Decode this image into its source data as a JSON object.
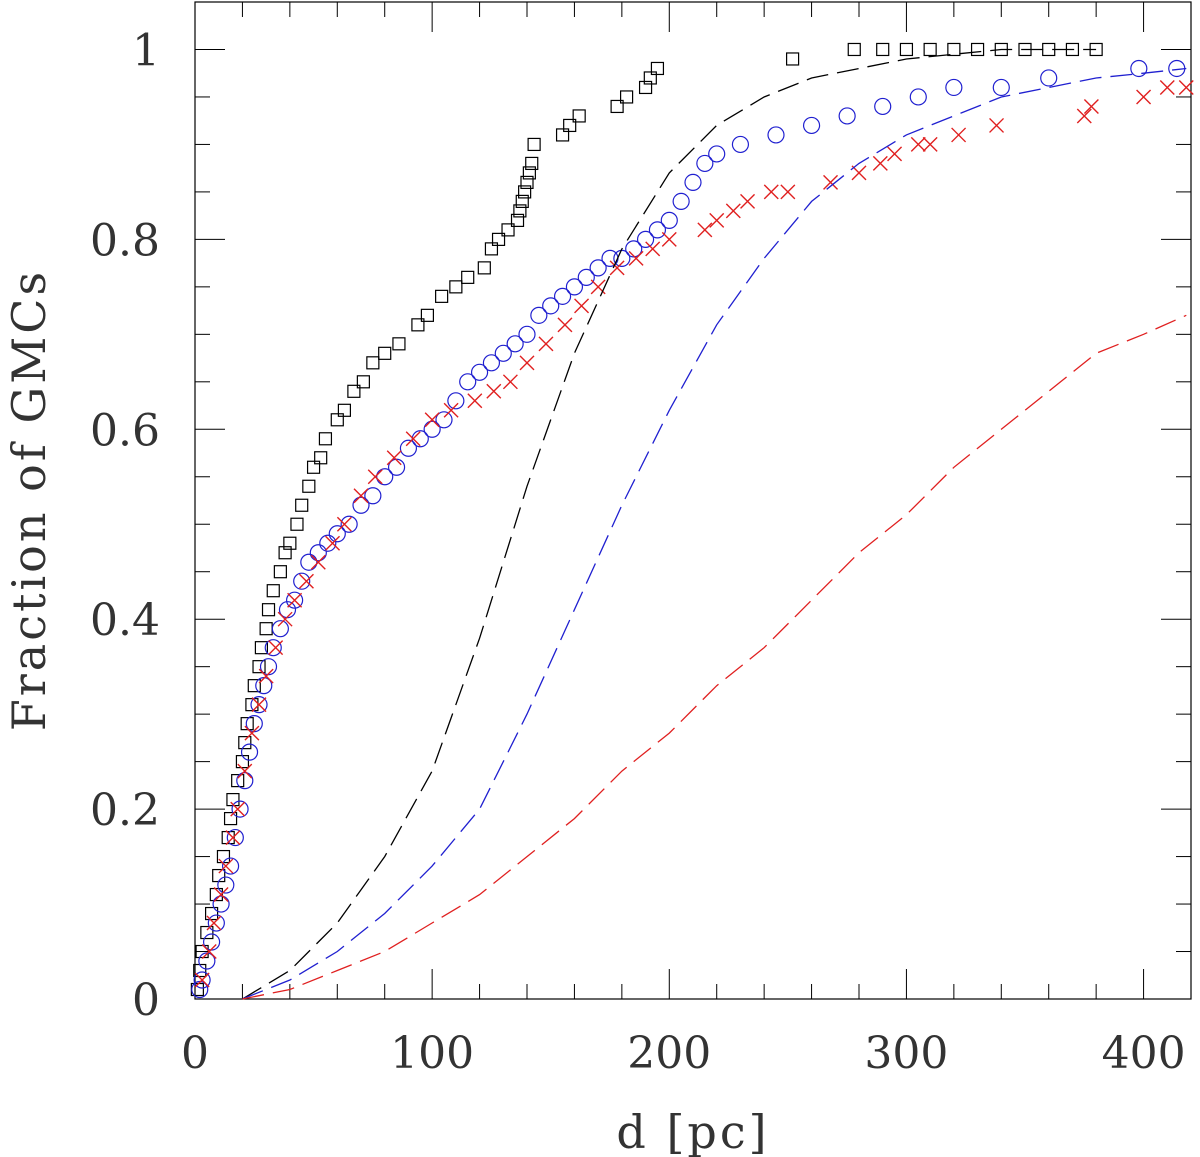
{
  "chart_data": {
    "type": "scatter",
    "title": "",
    "xlabel": "d [pc]",
    "ylabel": "Fraction of GMCs",
    "xlim": [
      0,
      420
    ],
    "ylim": [
      0,
      1.05
    ],
    "x_ticks": [
      0,
      100,
      200,
      300,
      400
    ],
    "x_tick_labels": [
      "0",
      "100",
      "200",
      "300",
      "400"
    ],
    "y_ticks": [
      0,
      0.2,
      0.4,
      0.6,
      0.8,
      1
    ],
    "y_tick_labels": [
      "0",
      "0.2",
      "0.4",
      "0.6",
      "0.8",
      "1"
    ],
    "grid": false,
    "series": [
      {
        "name": "black squares",
        "marker": "square",
        "color": "#000000",
        "points": [
          [
            1,
            0.01
          ],
          [
            2,
            0.03
          ],
          [
            3,
            0.05
          ],
          [
            5,
            0.07
          ],
          [
            7,
            0.09
          ],
          [
            9,
            0.11
          ],
          [
            10,
            0.13
          ],
          [
            12,
            0.15
          ],
          [
            14,
            0.17
          ],
          [
            15,
            0.19
          ],
          [
            16,
            0.21
          ],
          [
            18,
            0.23
          ],
          [
            20,
            0.25
          ],
          [
            21,
            0.27
          ],
          [
            22,
            0.29
          ],
          [
            24,
            0.31
          ],
          [
            25,
            0.33
          ],
          [
            27,
            0.35
          ],
          [
            28,
            0.37
          ],
          [
            30,
            0.39
          ],
          [
            31,
            0.41
          ],
          [
            33,
            0.43
          ],
          [
            36,
            0.45
          ],
          [
            38,
            0.47
          ],
          [
            40,
            0.48
          ],
          [
            43,
            0.5
          ],
          [
            45,
            0.52
          ],
          [
            48,
            0.54
          ],
          [
            50,
            0.56
          ],
          [
            53,
            0.57
          ],
          [
            55,
            0.59
          ],
          [
            60,
            0.61
          ],
          [
            63,
            0.62
          ],
          [
            67,
            0.64
          ],
          [
            71,
            0.65
          ],
          [
            75,
            0.67
          ],
          [
            80,
            0.68
          ],
          [
            86,
            0.69
          ],
          [
            94,
            0.71
          ],
          [
            98,
            0.72
          ],
          [
            104,
            0.74
          ],
          [
            110,
            0.75
          ],
          [
            115,
            0.76
          ],
          [
            122,
            0.77
          ],
          [
            125,
            0.79
          ],
          [
            128,
            0.8
          ],
          [
            132,
            0.81
          ],
          [
            136,
            0.82
          ],
          [
            137,
            0.83
          ],
          [
            138,
            0.84
          ],
          [
            139,
            0.85
          ],
          [
            140,
            0.86
          ],
          [
            141,
            0.87
          ],
          [
            142,
            0.88
          ],
          [
            143,
            0.9
          ],
          [
            155,
            0.91
          ],
          [
            158,
            0.92
          ],
          [
            162,
            0.93
          ],
          [
            178,
            0.94
          ],
          [
            182,
            0.95
          ],
          [
            190,
            0.96
          ],
          [
            192,
            0.97
          ],
          [
            195,
            0.98
          ],
          [
            252,
            0.99
          ],
          [
            278,
            1.0
          ],
          [
            290,
            1.0
          ],
          [
            300,
            1.0
          ],
          [
            310,
            1.0
          ],
          [
            320,
            1.0
          ],
          [
            330,
            1.0
          ],
          [
            340,
            1.0
          ],
          [
            350,
            1.0
          ],
          [
            360,
            1.0
          ],
          [
            370,
            1.0
          ],
          [
            380,
            1.0
          ]
        ]
      },
      {
        "name": "blue circles",
        "marker": "circle",
        "color": "#2020d0",
        "points": [
          [
            2,
            0.01
          ],
          [
            3,
            0.02
          ],
          [
            5,
            0.04
          ],
          [
            7,
            0.06
          ],
          [
            9,
            0.08
          ],
          [
            11,
            0.1
          ],
          [
            13,
            0.12
          ],
          [
            15,
            0.14
          ],
          [
            17,
            0.17
          ],
          [
            19,
            0.2
          ],
          [
            21,
            0.23
          ],
          [
            23,
            0.26
          ],
          [
            25,
            0.29
          ],
          [
            27,
            0.31
          ],
          [
            29,
            0.33
          ],
          [
            31,
            0.35
          ],
          [
            33,
            0.37
          ],
          [
            36,
            0.39
          ],
          [
            39,
            0.41
          ],
          [
            42,
            0.42
          ],
          [
            45,
            0.44
          ],
          [
            48,
            0.46
          ],
          [
            52,
            0.47
          ],
          [
            56,
            0.48
          ],
          [
            60,
            0.49
          ],
          [
            65,
            0.5
          ],
          [
            70,
            0.52
          ],
          [
            75,
            0.53
          ],
          [
            80,
            0.55
          ],
          [
            85,
            0.56
          ],
          [
            90,
            0.58
          ],
          [
            95,
            0.59
          ],
          [
            100,
            0.6
          ],
          [
            105,
            0.61
          ],
          [
            110,
            0.63
          ],
          [
            115,
            0.65
          ],
          [
            120,
            0.66
          ],
          [
            125,
            0.67
          ],
          [
            130,
            0.68
          ],
          [
            135,
            0.69
          ],
          [
            140,
            0.7
          ],
          [
            145,
            0.72
          ],
          [
            150,
            0.73
          ],
          [
            155,
            0.74
          ],
          [
            160,
            0.75
          ],
          [
            165,
            0.76
          ],
          [
            170,
            0.77
          ],
          [
            175,
            0.78
          ],
          [
            180,
            0.78
          ],
          [
            185,
            0.79
          ],
          [
            190,
            0.8
          ],
          [
            195,
            0.81
          ],
          [
            200,
            0.82
          ],
          [
            205,
            0.84
          ],
          [
            210,
            0.86
          ],
          [
            215,
            0.88
          ],
          [
            220,
            0.89
          ],
          [
            230,
            0.9
          ],
          [
            245,
            0.91
          ],
          [
            260,
            0.92
          ],
          [
            275,
            0.93
          ],
          [
            290,
            0.94
          ],
          [
            305,
            0.95
          ],
          [
            320,
            0.96
          ],
          [
            340,
            0.96
          ],
          [
            360,
            0.97
          ],
          [
            398,
            0.98
          ],
          [
            414,
            0.98
          ]
        ]
      },
      {
        "name": "red crosses",
        "marker": "cross",
        "color": "#e02020",
        "points": [
          [
            3,
            0.02
          ],
          [
            6,
            0.05
          ],
          [
            8,
            0.08
          ],
          [
            11,
            0.11
          ],
          [
            13,
            0.14
          ],
          [
            16,
            0.17
          ],
          [
            18,
            0.2
          ],
          [
            21,
            0.24
          ],
          [
            24,
            0.28
          ],
          [
            27,
            0.31
          ],
          [
            30,
            0.34
          ],
          [
            34,
            0.37
          ],
          [
            38,
            0.4
          ],
          [
            42,
            0.42
          ],
          [
            47,
            0.44
          ],
          [
            52,
            0.46
          ],
          [
            58,
            0.48
          ],
          [
            63,
            0.5
          ],
          [
            70,
            0.53
          ],
          [
            76,
            0.55
          ],
          [
            84,
            0.57
          ],
          [
            92,
            0.59
          ],
          [
            100,
            0.61
          ],
          [
            108,
            0.62
          ],
          [
            118,
            0.63
          ],
          [
            126,
            0.64
          ],
          [
            133,
            0.65
          ],
          [
            140,
            0.67
          ],
          [
            148,
            0.69
          ],
          [
            156,
            0.71
          ],
          [
            163,
            0.73
          ],
          [
            170,
            0.75
          ],
          [
            178,
            0.77
          ],
          [
            186,
            0.78
          ],
          [
            193,
            0.79
          ],
          [
            200,
            0.8
          ],
          [
            215,
            0.81
          ],
          [
            220,
            0.82
          ],
          [
            227,
            0.83
          ],
          [
            233,
            0.84
          ],
          [
            243,
            0.85
          ],
          [
            250,
            0.85
          ],
          [
            268,
            0.86
          ],
          [
            280,
            0.87
          ],
          [
            289,
            0.88
          ],
          [
            295,
            0.89
          ],
          [
            305,
            0.9
          ],
          [
            310,
            0.9
          ],
          [
            322,
            0.91
          ],
          [
            338,
            0.92
          ],
          [
            375,
            0.93
          ],
          [
            378,
            0.94
          ],
          [
            400,
            0.95
          ],
          [
            410,
            0.96
          ],
          [
            418,
            0.96
          ]
        ]
      },
      {
        "name": "black dashed model",
        "marker": "dashed-line",
        "color": "#000000",
        "points": [
          [
            20,
            0.0
          ],
          [
            40,
            0.03
          ],
          [
            60,
            0.08
          ],
          [
            80,
            0.15
          ],
          [
            100,
            0.24
          ],
          [
            120,
            0.38
          ],
          [
            140,
            0.54
          ],
          [
            160,
            0.68
          ],
          [
            180,
            0.79
          ],
          [
            200,
            0.87
          ],
          [
            220,
            0.92
          ],
          [
            240,
            0.95
          ],
          [
            260,
            0.97
          ],
          [
            300,
            0.99
          ],
          [
            340,
            1.0
          ],
          [
            380,
            1.0
          ]
        ]
      },
      {
        "name": "blue dashed model",
        "marker": "dashed-line",
        "color": "#2020d0",
        "points": [
          [
            20,
            0.0
          ],
          [
            40,
            0.02
          ],
          [
            60,
            0.05
          ],
          [
            80,
            0.09
          ],
          [
            100,
            0.14
          ],
          [
            120,
            0.2
          ],
          [
            140,
            0.3
          ],
          [
            160,
            0.41
          ],
          [
            180,
            0.52
          ],
          [
            200,
            0.62
          ],
          [
            220,
            0.71
          ],
          [
            240,
            0.78
          ],
          [
            260,
            0.84
          ],
          [
            280,
            0.88
          ],
          [
            300,
            0.91
          ],
          [
            320,
            0.93
          ],
          [
            340,
            0.95
          ],
          [
            360,
            0.96
          ],
          [
            380,
            0.97
          ],
          [
            400,
            0.975
          ],
          [
            418,
            0.98
          ]
        ]
      },
      {
        "name": "red dashed model",
        "marker": "dashed-line",
        "color": "#e02020",
        "points": [
          [
            20,
            0.0
          ],
          [
            40,
            0.01
          ],
          [
            60,
            0.03
          ],
          [
            80,
            0.05
          ],
          [
            100,
            0.08
          ],
          [
            120,
            0.11
          ],
          [
            140,
            0.15
          ],
          [
            160,
            0.19
          ],
          [
            180,
            0.24
          ],
          [
            200,
            0.28
          ],
          [
            220,
            0.33
          ],
          [
            240,
            0.37
          ],
          [
            260,
            0.42
          ],
          [
            280,
            0.47
          ],
          [
            300,
            0.51
          ],
          [
            320,
            0.56
          ],
          [
            340,
            0.6
          ],
          [
            360,
            0.64
          ],
          [
            380,
            0.68
          ],
          [
            400,
            0.7
          ],
          [
            418,
            0.72
          ]
        ]
      }
    ]
  }
}
